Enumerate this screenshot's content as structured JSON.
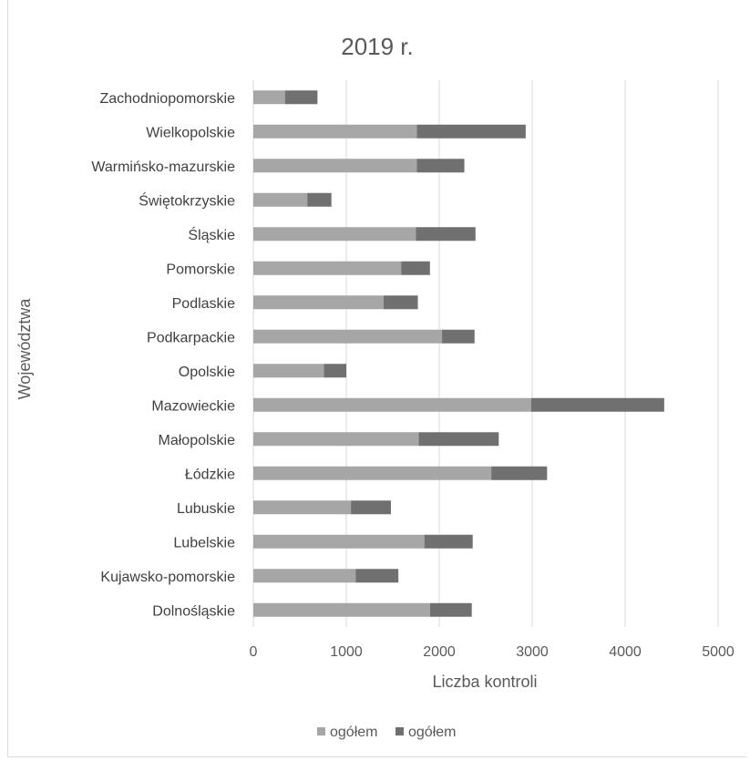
{
  "chart_data": {
    "type": "bar",
    "orientation": "horizontal",
    "stacked": true,
    "title": "2019 r.",
    "xlabel": "Liczba kontroli",
    "ylabel": "Województwa",
    "xlim": [
      0,
      5000
    ],
    "xticks": [
      0,
      1000,
      2000,
      3000,
      4000,
      5000
    ],
    "grid": "vertical",
    "legend_position": "bottom",
    "categories": [
      "Zachodniopomorskie",
      "Wielkopolskie",
      "Warmińsko-mazurskie",
      "Świętokrzyskie",
      "Śląskie",
      "Pomorskie",
      "Podlaskie",
      "Podkarpackie",
      "Opolskie",
      "Mazowieckie",
      "Małopolskie",
      "Łódzkie",
      "Lubuskie",
      "Lubelskie",
      "Kujawsko-pomorskie",
      "Dolnośląskie"
    ],
    "series": [
      {
        "name": "ogółem",
        "color": "#a6a6a6",
        "values": [
          340,
          1760,
          1760,
          580,
          1750,
          1590,
          1400,
          2030,
          760,
          2990,
          1780,
          2560,
          1050,
          1840,
          1100,
          1900
        ]
      },
      {
        "name": "ogółem",
        "color": "#707070",
        "values": [
          350,
          1170,
          510,
          260,
          640,
          310,
          370,
          350,
          240,
          1430,
          860,
          600,
          430,
          520,
          460,
          450
        ]
      }
    ]
  }
}
